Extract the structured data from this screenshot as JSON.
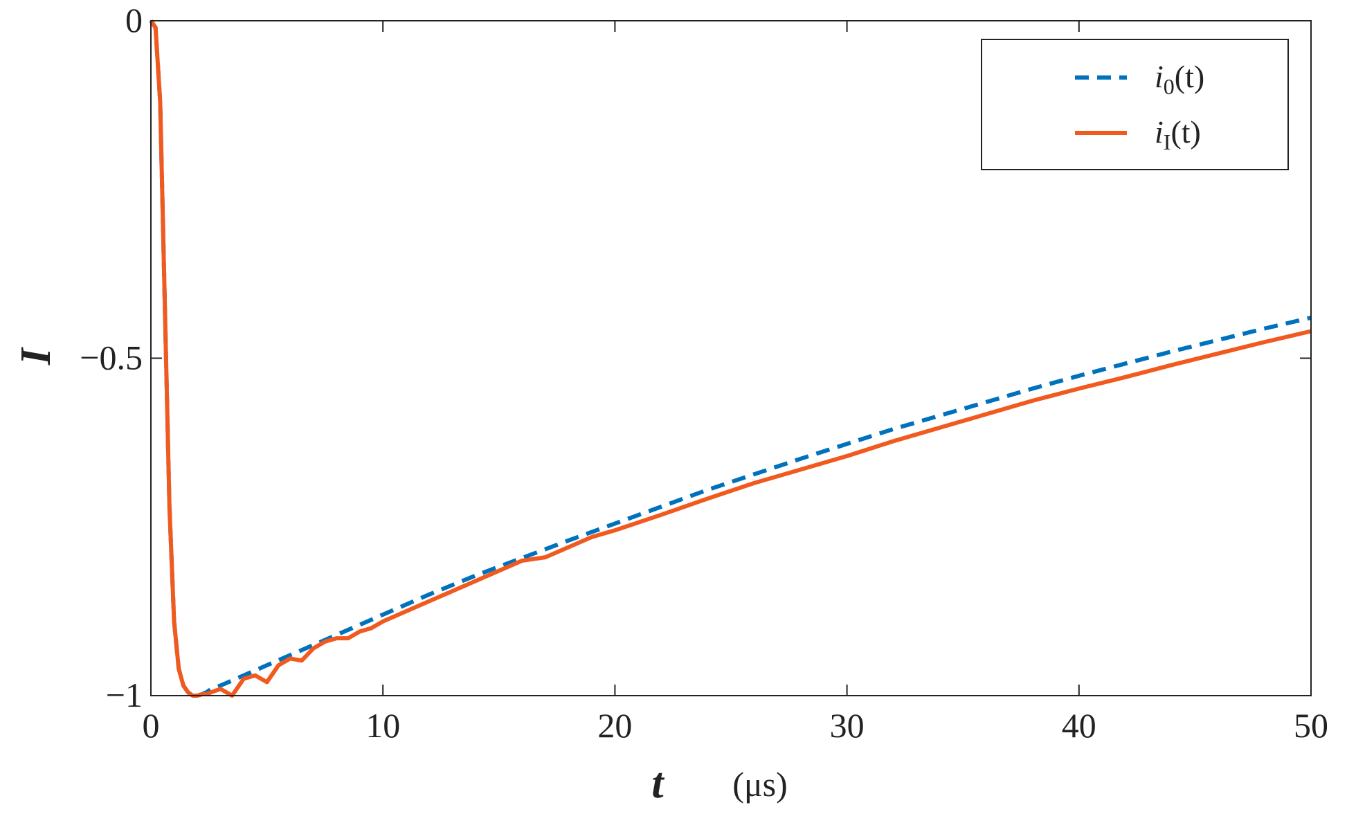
{
  "chart_data": {
    "type": "line",
    "title": "",
    "xlabel": "t",
    "xlabel_unit": "(μs)",
    "ylabel": "I",
    "xlim": [
      0,
      50
    ],
    "ylim": [
      -1,
      0
    ],
    "xticks": [
      0,
      10,
      20,
      30,
      40,
      50
    ],
    "xtick_labels": [
      "0",
      "10",
      "20",
      "30",
      "40",
      "50"
    ],
    "yticks": [
      0,
      -0.5,
      -1
    ],
    "ytick_labels": [
      "0",
      "−0.5",
      "−1"
    ],
    "grid": false,
    "legend_position": "top-right",
    "series": [
      {
        "name": "i0(t)",
        "legend": {
          "base": "i",
          "sub": "0",
          "tail": "(t)"
        },
        "color": "#0072BD",
        "style": "dashed",
        "x": [
          0,
          0.2,
          0.4,
          0.6,
          0.8,
          1.0,
          1.2,
          1.4,
          1.6,
          1.8,
          2.0,
          2.2,
          2.4,
          2.6,
          3,
          4,
          5,
          6,
          7,
          8,
          10,
          12,
          14,
          16,
          18,
          20,
          22,
          24,
          26,
          28,
          30,
          32,
          34,
          36,
          38,
          40,
          42,
          44,
          46,
          48,
          50
        ],
        "y": [
          0,
          -0.01,
          -0.12,
          -0.42,
          -0.72,
          -0.89,
          -0.96,
          -0.985,
          -0.995,
          -1.0,
          -1.0,
          -0.998,
          -0.995,
          -0.99,
          -0.985,
          -0.97,
          -0.955,
          -0.94,
          -0.925,
          -0.91,
          -0.88,
          -0.85,
          -0.822,
          -0.796,
          -0.77,
          -0.745,
          -0.72,
          -0.695,
          -0.672,
          -0.649,
          -0.627,
          -0.605,
          -0.585,
          -0.565,
          -0.545,
          -0.526,
          -0.508,
          -0.49,
          -0.473,
          -0.456,
          -0.44
        ]
      },
      {
        "name": "iI(t)",
        "legend": {
          "base": "i",
          "sub": "I",
          "tail": "(t)"
        },
        "color": "#F15A1F",
        "style": "solid",
        "x": [
          0,
          0.2,
          0.4,
          0.6,
          0.8,
          1.0,
          1.2,
          1.4,
          1.6,
          1.8,
          2.0,
          2.2,
          2.4,
          2.6,
          3.0,
          3.5,
          4.0,
          4.5,
          5.0,
          5.5,
          6.0,
          6.5,
          7.0,
          7.5,
          8.0,
          8.5,
          9.0,
          9.5,
          10,
          11,
          12,
          13,
          14,
          15,
          16,
          17,
          18,
          19,
          20,
          22,
          24,
          26,
          28,
          30,
          32,
          34,
          36,
          38,
          40,
          42,
          44,
          46,
          48,
          50
        ],
        "y": [
          0,
          -0.01,
          -0.12,
          -0.42,
          -0.72,
          -0.89,
          -0.96,
          -0.985,
          -0.995,
          -1.0,
          -1.0,
          -0.998,
          -0.998,
          -0.995,
          -0.99,
          -1.0,
          -0.975,
          -0.97,
          -0.98,
          -0.955,
          -0.945,
          -0.948,
          -0.93,
          -0.92,
          -0.915,
          -0.915,
          -0.905,
          -0.9,
          -0.89,
          -0.875,
          -0.86,
          -0.845,
          -0.83,
          -0.815,
          -0.8,
          -0.795,
          -0.78,
          -0.765,
          -0.755,
          -0.732,
          -0.708,
          -0.685,
          -0.665,
          -0.645,
          -0.623,
          -0.603,
          -0.583,
          -0.563,
          -0.545,
          -0.528,
          -0.51,
          -0.493,
          -0.476,
          -0.46
        ]
      }
    ]
  }
}
